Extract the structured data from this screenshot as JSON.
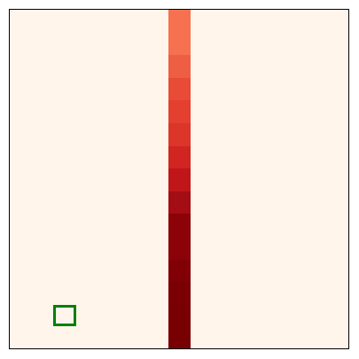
{
  "game": {
    "board_color": "#fff5eb",
    "agent": {
      "icon": "square-outline-icon",
      "color": "#008000"
    },
    "beam": {
      "colors": [
        "#f5714f",
        "#f5714f",
        "#ee5e43",
        "#e84c36",
        "#e44030",
        "#dc3529",
        "#d02521",
        "#c11619",
        "#a40d13",
        "#8b0308",
        "#8b0308",
        "#800005",
        "#7a0004",
        "#780003",
        "#780002"
      ]
    }
  }
}
